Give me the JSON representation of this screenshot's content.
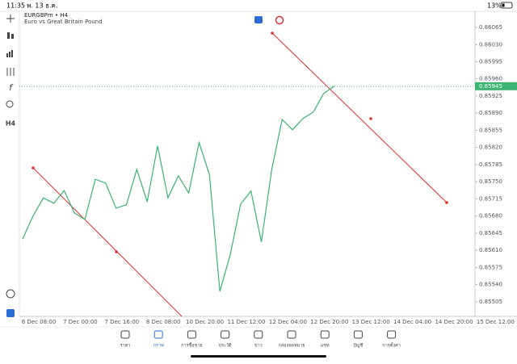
{
  "status_bar": {
    "time": "11:35",
    "date": "พ. 13 ธ.ค.",
    "battery": "13%"
  },
  "header": {
    "symbol": "EURGBPm • H4",
    "description": "Euro vs Great Britain Pound"
  },
  "toolbar": {
    "timeframe": "H4"
  },
  "chart_data": {
    "type": "line",
    "color": "#3cb371",
    "values": [
      0.85633,
      0.8568,
      0.85717,
      0.85706,
      0.85732,
      0.85686,
      0.85673,
      0.85755,
      0.85747,
      0.85696,
      0.85703,
      0.85775,
      0.85709,
      0.85823,
      0.85717,
      0.85762,
      0.85727,
      0.8583,
      0.85764,
      0.85526,
      0.85601,
      0.85704,
      0.85731,
      0.85627,
      0.85775,
      0.85877,
      0.85856,
      0.85879,
      0.85892,
      0.8593,
      0.85945
    ],
    "ylim": [
      0.85475,
      0.86098
    ],
    "yticks": [
      0.86065,
      {
        "value": 0.8603,
        "label": "0.86030"
      },
      0.85995,
      {
        "value": 0.8596,
        "label": "0.85960"
      },
      0.85925,
      {
        "value": 0.8589,
        "label": "0.85890"
      },
      0.85855,
      {
        "value": 0.8582,
        "label": "0.85820"
      },
      0.85785,
      {
        "value": 0.8575,
        "label": "0.85750"
      },
      0.85715,
      {
        "value": 0.8568,
        "label": "0.85680"
      },
      0.85645,
      {
        "value": 0.8561,
        "label": "0.85610"
      },
      0.85575,
      {
        "value": 0.8554,
        "label": "0.85540"
      },
      0.85505
    ],
    "current_price": 0.85945,
    "x_labels": [
      "6 Dec 08:00",
      "7 Dec 00:00",
      "7 Dec 16:00",
      "8 Dec 08:00",
      "10 Dec 20:00",
      "11 Dec 12:00",
      "12 Dec 04:00",
      "12 Dec 20:00",
      "13 Dec 12:00",
      "14 Dec 04:00",
      "14 Dec 20:00",
      "15 Dec 12:00"
    ]
  },
  "tabs": [
    "ราคา",
    "กราฟ",
    "การซื้อขาย",
    "ประวัติ",
    "ข่าว",
    "กล่องจดหมาย",
    "แชท",
    "บัญชี",
    "การตั้งค่า"
  ]
}
